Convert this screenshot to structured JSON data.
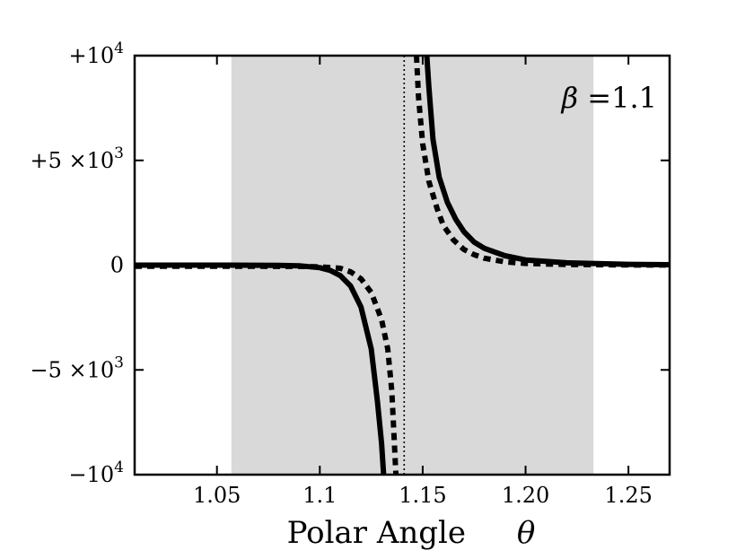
{
  "chart_data": {
    "type": "line",
    "xlabel": "Polar Angle",
    "xlabel_symbol": "θ",
    "annotation": {
      "symbol": "β",
      "text": "=1.1"
    },
    "xlim": [
      1.01,
      1.27
    ],
    "ylim": [
      -10000,
      10000
    ],
    "x_ticks": [
      {
        "value": 1.05,
        "label": "1.05"
      },
      {
        "value": 1.1,
        "label": "1.1"
      },
      {
        "value": 1.15,
        "label": "1.15"
      },
      {
        "value": 1.2,
        "label": "1.20"
      },
      {
        "value": 1.25,
        "label": "1.25"
      }
    ],
    "y_ticks": [
      {
        "value": 10000,
        "label": "+10",
        "exp": "4"
      },
      {
        "value": 5000,
        "label": "+5 ×10",
        "exp": "3"
      },
      {
        "value": 0,
        "label": "0",
        "exp": ""
      },
      {
        "value": -5000,
        "label": "−5 ×10",
        "exp": "3"
      },
      {
        "value": -10000,
        "label": "−10",
        "exp": "4"
      }
    ],
    "shaded_region": {
      "x_start": 1.057,
      "x_end": 1.233,
      "color": "#d9d9d9"
    },
    "vertical_line": {
      "x": 1.141,
      "style": "dotted"
    },
    "series": [
      {
        "style": "solid",
        "color": "#000000",
        "branches": [
          [
            [
              1.01,
              0
            ],
            [
              1.05,
              0
            ],
            [
              1.08,
              -10
            ],
            [
              1.09,
              -30
            ],
            [
              1.1,
              -120
            ],
            [
              1.105,
              -250
            ],
            [
              1.11,
              -500
            ],
            [
              1.115,
              -1000
            ],
            [
              1.12,
              -2000
            ],
            [
              1.125,
              -4000
            ],
            [
              1.128,
              -6500
            ],
            [
              1.13,
              -8500
            ],
            [
              1.131,
              -10000
            ]
          ],
          [
            [
              1.152,
              10000
            ],
            [
              1.153,
              8500
            ],
            [
              1.155,
              6000
            ],
            [
              1.158,
              4200
            ],
            [
              1.162,
              3000
            ],
            [
              1.166,
              2200
            ],
            [
              1.17,
              1600
            ],
            [
              1.175,
              1100
            ],
            [
              1.18,
              800
            ],
            [
              1.19,
              450
            ],
            [
              1.2,
              250
            ],
            [
              1.22,
              110
            ],
            [
              1.25,
              40
            ],
            [
              1.27,
              20
            ]
          ]
        ]
      },
      {
        "style": "dashed",
        "color": "#000000",
        "branches": [
          [
            [
              1.01,
              -50
            ],
            [
              1.05,
              -50
            ],
            [
              1.09,
              -60
            ],
            [
              1.1,
              -80
            ],
            [
              1.11,
              -150
            ],
            [
              1.115,
              -320
            ],
            [
              1.12,
              -650
            ],
            [
              1.125,
              -1300
            ],
            [
              1.13,
              -2600
            ],
            [
              1.133,
              -4000
            ],
            [
              1.135,
              -6000
            ],
            [
              1.136,
              -8000
            ],
            [
              1.137,
              -10000
            ]
          ],
          [
            [
              1.147,
              10000
            ],
            [
              1.148,
              8000
            ],
            [
              1.15,
              5800
            ],
            [
              1.153,
              4000
            ],
            [
              1.157,
              2700
            ],
            [
              1.16,
              1900
            ],
            [
              1.165,
              1200
            ],
            [
              1.17,
              750
            ],
            [
              1.175,
              500
            ],
            [
              1.18,
              330
            ],
            [
              1.19,
              160
            ],
            [
              1.2,
              80
            ],
            [
              1.22,
              30
            ],
            [
              1.25,
              10
            ],
            [
              1.27,
              5
            ]
          ]
        ]
      }
    ]
  }
}
